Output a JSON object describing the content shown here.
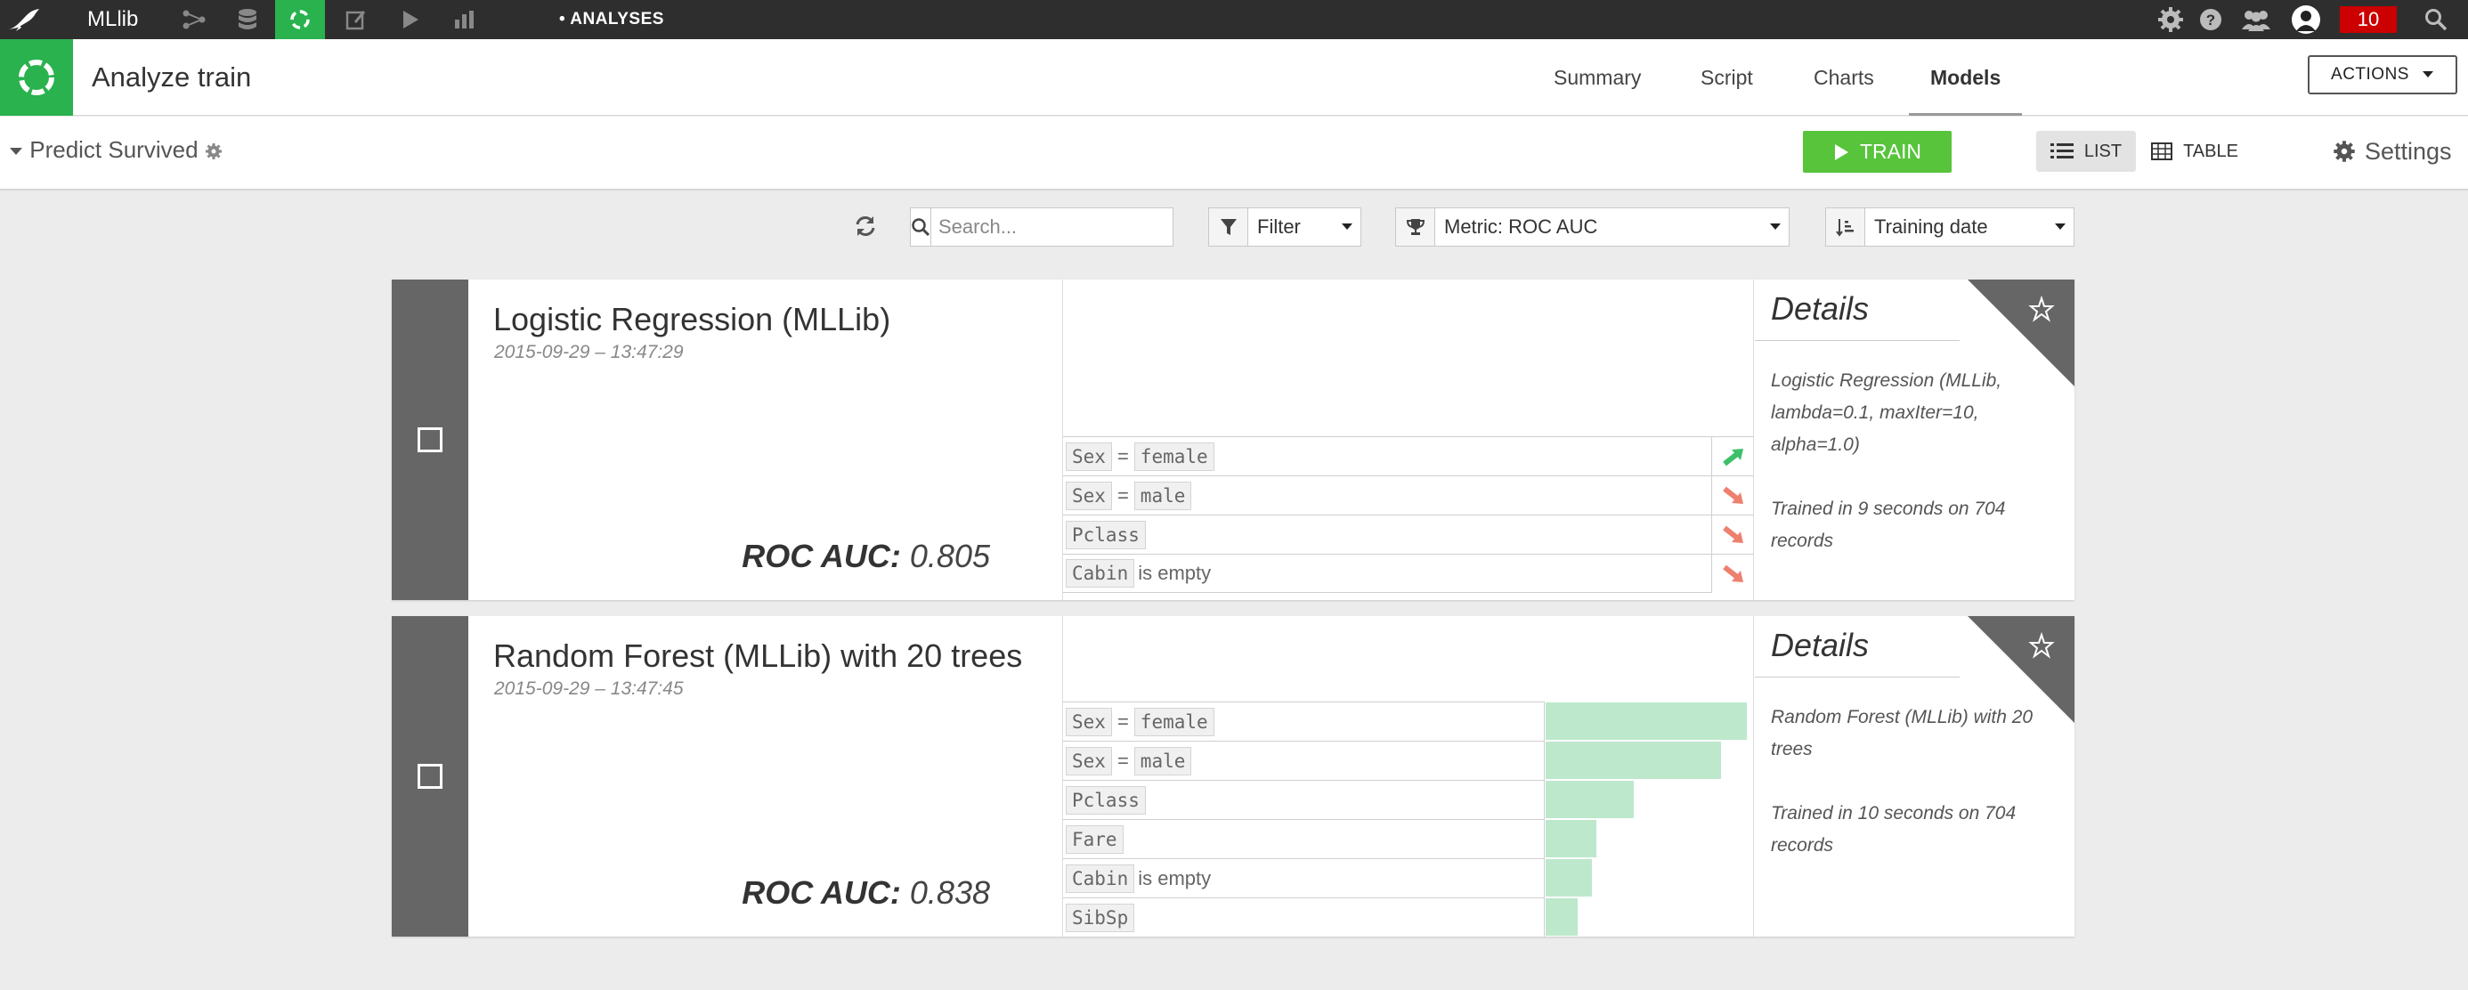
{
  "topbar": {
    "project": "MLlib",
    "breadcrumb": "• ANALYSES",
    "notifications": "10"
  },
  "header": {
    "title": "Analyze train",
    "tabs": [
      "Summary",
      "Script",
      "Charts",
      "Models"
    ],
    "active_tab": "Models",
    "actions_label": "ACTIONS"
  },
  "subheader": {
    "target": "Predict Survived",
    "train_label": "TRAIN",
    "list_label": "LIST",
    "table_label": "TABLE",
    "settings_label": "Settings"
  },
  "filters": {
    "search_placeholder": "Search...",
    "filter_label": "Filter",
    "metric_label": "Metric: ROC AUC",
    "sort_label": "Training date"
  },
  "models": [
    {
      "name": "Logistic Regression (MLLib)",
      "date": "2015-09-29 – 13:47:29",
      "metric_name": "ROC AUC:",
      "metric_value": "0.805",
      "details_title": "Details",
      "details_desc": "Logistic Regression (MLLib, lambda=0.1, maxIter=10, alpha=1.0)",
      "details_trained": "Trained in 9 seconds on 704 records",
      "features": [
        {
          "name": "Sex",
          "op": "=",
          "value": "female",
          "direction": "up"
        },
        {
          "name": "Sex",
          "op": "=",
          "value": "male",
          "direction": "down"
        },
        {
          "name": "Pclass",
          "op": "",
          "value": "",
          "direction": "down"
        },
        {
          "name": "Cabin",
          "op": "",
          "value": "is empty",
          "direction": "down"
        }
      ]
    },
    {
      "name": "Random Forest (MLLib) with 20 trees",
      "date": "2015-09-29 – 13:47:45",
      "metric_name": "ROC AUC:",
      "metric_value": "0.838",
      "details_title": "Details",
      "details_desc": "Random Forest (MLLib) with 20 trees",
      "details_trained": "Trained in 10 seconds on 704 records",
      "features": [
        {
          "name": "Sex",
          "op": "=",
          "value": "female",
          "importance": 1.0
        },
        {
          "name": "Sex",
          "op": "=",
          "value": "male",
          "importance": 0.87
        },
        {
          "name": "Pclass",
          "op": "",
          "value": "",
          "importance": 0.44
        },
        {
          "name": "Fare",
          "op": "",
          "value": "",
          "importance": 0.25
        },
        {
          "name": "Cabin",
          "op": "",
          "value": "is empty",
          "importance": 0.23
        },
        {
          "name": "SibSp",
          "op": "",
          "value": "",
          "importance": 0.16
        }
      ]
    }
  ],
  "colors": {
    "brand_green": "#2ab24e",
    "train_green": "#57c43c",
    "bar_green": "#bde8cc",
    "up_arrow": "#3cc06a",
    "down_arrow": "#ee8070",
    "badge_red": "#cc0000"
  }
}
